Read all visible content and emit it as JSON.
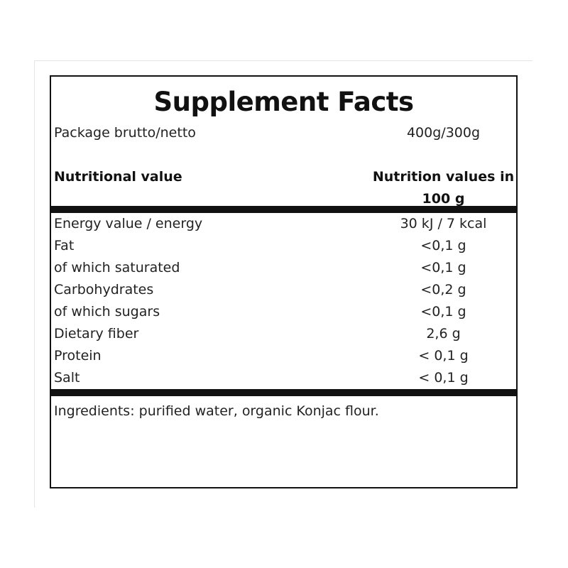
{
  "title": "Supplement Facts",
  "package": {
    "label": "Package brutto/netto",
    "value": "400g/300g"
  },
  "header": {
    "left": "Nutritional value",
    "right_line1": "Nutrition values in",
    "right_line2": "100 g"
  },
  "rows": [
    {
      "label": "Energy value / energy",
      "value": "30 kJ / 7 kcal"
    },
    {
      "label": "Fat",
      "value": "<0,1 g"
    },
    {
      "label": "of which saturated",
      "value": "<0,1 g"
    },
    {
      "label": "Carbohydrates",
      "value": "<0,2 g"
    },
    {
      "label": "of which sugars",
      "value": "<0,1 g"
    },
    {
      "label": "Dietary fiber",
      "value": "2,6 g"
    },
    {
      "label": "Protein",
      "value": "< 0,1 g"
    },
    {
      "label": "Salt",
      "value": "< 0,1 g"
    }
  ],
  "ingredients": "Ingredients: purified water, organic Konjac flour."
}
